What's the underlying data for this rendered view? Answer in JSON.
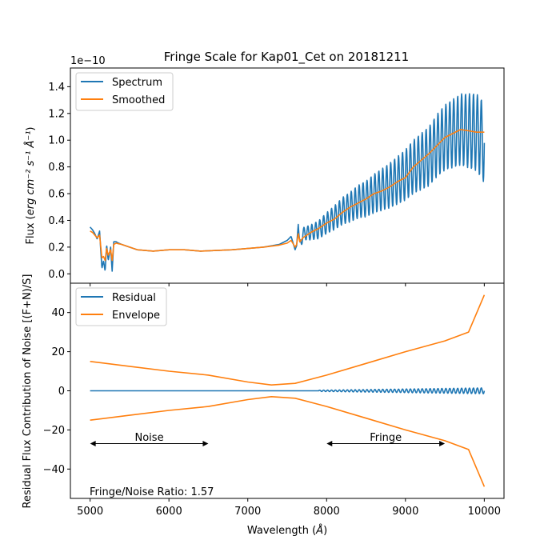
{
  "chart_data": [
    {
      "type": "line",
      "title": "Fringe Scale for Kap01_Cet on 20181211",
      "offset_text": "1e−10",
      "ylabel_prefix": "Flux (",
      "ylabel_math": "erg cm⁻² s⁻¹ Å⁻¹",
      "ylabel_suffix": ")",
      "xlim": [
        4750,
        10250
      ],
      "ylim": [
        -0.07,
        1.54
      ],
      "yticks": [
        0.0,
        0.2,
        0.4,
        0.6,
        0.8,
        1.0,
        1.2,
        1.4
      ],
      "ytick_labels": [
        "0.0",
        "0.2",
        "0.4",
        "0.6",
        "0.8",
        "1.0",
        "1.2",
        "1.4"
      ],
      "grid": false,
      "legend_position": "upper-left",
      "series": [
        {
          "name": "Spectrum",
          "color": "#1f77b4",
          "x": [
            5000,
            5030,
            5060,
            5090,
            5120,
            5150,
            5170,
            5190,
            5210,
            5230,
            5260,
            5280,
            5300,
            5330,
            5360,
            5400,
            5500,
            5600,
            5700,
            5800,
            6000,
            6200,
            6400,
            6600,
            6800,
            7000,
            7200,
            7400,
            7500,
            7550,
            7600,
            7620,
            7640,
            7660,
            7700,
            7800,
            7900,
            8000,
            8100,
            8200,
            8300,
            8400,
            8500,
            8600,
            8700,
            8800,
            8900,
            9000,
            9100,
            9200,
            9300,
            9400,
            9500,
            9600,
            9700,
            9800,
            9900,
            10000
          ],
          "values": [
            0.35,
            0.33,
            0.3,
            0.26,
            0.32,
            0.04,
            0.1,
            0.02,
            0.22,
            0.1,
            0.2,
            0.02,
            0.24,
            0.24,
            0.23,
            0.22,
            0.2,
            0.18,
            0.175,
            0.17,
            0.18,
            0.18,
            0.17,
            0.175,
            0.18,
            0.19,
            0.2,
            0.22,
            0.25,
            0.28,
            0.18,
            0.21,
            0.37,
            0.2,
            0.3,
            0.31,
            0.33,
            0.38,
            0.42,
            0.47,
            0.5,
            0.54,
            0.56,
            0.6,
            0.63,
            0.66,
            0.7,
            0.74,
            0.8,
            0.84,
            0.88,
            0.96,
            1.02,
            1.05,
            1.08,
            1.07,
            1.06,
            0.98
          ],
          "fringe_start": 7650,
          "fringe_amplitude_start": 0.04,
          "fringe_amplitude_end": 0.3,
          "fringe_period": 50
        },
        {
          "name": "Smoothed",
          "color": "#ff7f0e",
          "x": [
            5000,
            5030,
            5060,
            5090,
            5120,
            5150,
            5170,
            5190,
            5210,
            5230,
            5260,
            5280,
            5300,
            5330,
            5360,
            5400,
            5500,
            5600,
            5700,
            5800,
            6000,
            6200,
            6400,
            6600,
            6800,
            7000,
            7200,
            7400,
            7500,
            7550,
            7600,
            7620,
            7640,
            7660,
            7700,
            7800,
            7900,
            8000,
            8100,
            8200,
            8300,
            8400,
            8500,
            8600,
            8700,
            8800,
            8900,
            9000,
            9100,
            9200,
            9300,
            9400,
            9500,
            9600,
            9700,
            9800,
            9900,
            10000
          ],
          "values": [
            0.32,
            0.31,
            0.29,
            0.27,
            0.29,
            0.12,
            0.13,
            0.1,
            0.19,
            0.14,
            0.18,
            0.1,
            0.22,
            0.23,
            0.225,
            0.22,
            0.2,
            0.18,
            0.175,
            0.17,
            0.18,
            0.18,
            0.17,
            0.175,
            0.18,
            0.19,
            0.2,
            0.215,
            0.23,
            0.25,
            0.2,
            0.22,
            0.3,
            0.24,
            0.27,
            0.31,
            0.34,
            0.38,
            0.41,
            0.46,
            0.5,
            0.53,
            0.56,
            0.6,
            0.62,
            0.65,
            0.69,
            0.72,
            0.8,
            0.85,
            0.9,
            0.96,
            1.02,
            1.05,
            1.08,
            1.07,
            1.06,
            1.06
          ]
        }
      ]
    },
    {
      "type": "line",
      "xlabel_prefix": "Wavelength (",
      "xlabel_math": "Å",
      "xlabel_suffix": ")",
      "ylabel": "Residual Flux Contribution of Noise [(F+N)/S]",
      "xlim": [
        4750,
        10250
      ],
      "ylim": [
        -55,
        55
      ],
      "xticks": [
        5000,
        6000,
        7000,
        8000,
        9000,
        10000
      ],
      "xtick_labels": [
        "5000",
        "6000",
        "7000",
        "8000",
        "9000",
        "10000"
      ],
      "yticks": [
        -40,
        -20,
        0,
        20,
        40
      ],
      "ytick_labels": [
        "−40",
        "−20",
        "0",
        "20",
        "40"
      ],
      "grid": false,
      "legend_position": "upper-left",
      "series": [
        {
          "name": "Residual",
          "color": "#1f77b4",
          "x": [
            5000,
            10000
          ],
          "values": [
            0,
            0
          ],
          "fringe_start": 7900,
          "fringe_amplitude_start": 0.3,
          "fringe_amplitude_end": 1.5,
          "fringe_period": 50
        },
        {
          "name": "Envelope",
          "color": "#ff7f0e",
          "x": [
            5000,
            5500,
            6000,
            6500,
            7000,
            7300,
            7600,
            8000,
            8500,
            9000,
            9500,
            9800,
            10000
          ],
          "values": [
            15,
            12.5,
            10,
            8,
            4.5,
            3,
            3.8,
            8,
            14,
            20,
            25.5,
            30,
            49
          ]
        }
      ],
      "annotations": [
        {
          "text": "Noise",
          "arrow_from": 5000,
          "arrow_to": 6500,
          "y": -27,
          "label_x": 5750,
          "label_y": -24
        },
        {
          "text": "Fringe",
          "arrow_from": 8000,
          "arrow_to": 9500,
          "y": -27,
          "label_x": 8750,
          "label_y": -24
        }
      ],
      "ratio_text": "Fringe/Noise Ratio: 1.57"
    }
  ]
}
